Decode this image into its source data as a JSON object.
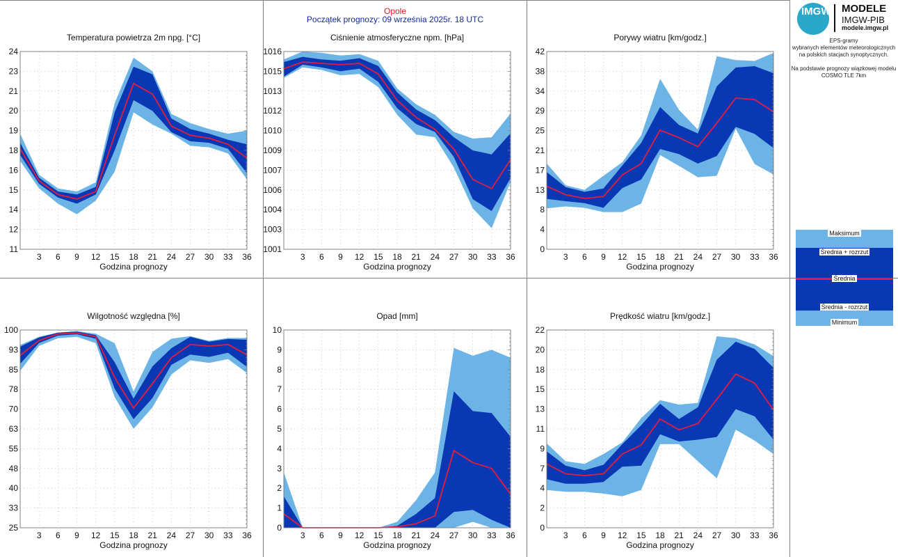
{
  "header": {
    "station": "Opole",
    "start": "Początek prognozy: 09 września 2025r. 18 UTC"
  },
  "logo": {
    "mark": "IMGW",
    "line1": "MODELE",
    "line2": "IMGW-PIB",
    "line3": "modele.imgw.pl"
  },
  "description": {
    "line1": "EPS-gramy",
    "line2": "wybranych elementów meteorologicznych",
    "line3": "na polskich stacjach  synoptycznych.",
    "line4": "Na podstawie prognozy wiązkowej modelu",
    "line5": "COSMO TLE 7km"
  },
  "legend": {
    "max": "Maksimum",
    "upper": "Średnia + rozrzut",
    "mean": "Średnia",
    "lower": "Średnia - rozrzut",
    "min": "Minimum"
  },
  "colors": {
    "outer": "#6cb4e6",
    "inner": "#0a37b4",
    "mean": "#e21e3c",
    "grid": "#b0b0b0",
    "frame": "#808080"
  },
  "chart_data": [
    {
      "type": "area",
      "title": "Temperatura powietrza 2m npg. [°C]",
      "xlabel": "Godzina prognozy",
      "x": [
        0,
        3,
        6,
        9,
        12,
        15,
        18,
        21,
        24,
        27,
        30,
        33,
        36
      ],
      "xticks": [
        "3",
        "6",
        "9",
        "12",
        "15",
        "18",
        "21",
        "24",
        "27",
        "30",
        "33",
        "36"
      ],
      "yticks": [
        "11",
        "12",
        "14",
        "15",
        "16",
        "18",
        "19",
        "20",
        "21",
        "23",
        "24"
      ],
      "ylim": [
        11,
        24
      ],
      "series": [
        {
          "name": "Minimum",
          "values": [
            16.8,
            15.0,
            14.0,
            13.3,
            14.2,
            16.1,
            20.0,
            19.2,
            18.6,
            17.8,
            17.7,
            17.3,
            15.6
          ]
        },
        {
          "name": "Średnia - rozrzut",
          "values": [
            17.2,
            15.3,
            14.4,
            14.0,
            14.6,
            17.5,
            20.8,
            20.1,
            18.7,
            18.1,
            18.0,
            17.6,
            16.0
          ]
        },
        {
          "name": "Średnia",
          "values": [
            17.6,
            15.5,
            14.6,
            14.3,
            14.8,
            18.5,
            21.9,
            21.2,
            19.1,
            18.5,
            18.3,
            17.9,
            17.0
          ]
        },
        {
          "name": "Średnia + rozrzut",
          "values": [
            18.0,
            15.7,
            14.8,
            14.6,
            15.1,
            20.0,
            23.0,
            22.5,
            19.6,
            18.9,
            18.6,
            18.2,
            17.9
          ]
        },
        {
          "name": "Maksimum",
          "values": [
            18.6,
            15.9,
            15.0,
            14.8,
            15.4,
            20.6,
            23.6,
            22.7,
            19.9,
            19.3,
            18.9,
            18.6,
            18.8
          ]
        }
      ]
    },
    {
      "type": "area",
      "title": "Ciśnienie atmosferyczne npm. [hPa]",
      "xlabel": "Godzina prognozy",
      "x": [
        0,
        3,
        6,
        9,
        12,
        15,
        18,
        21,
        24,
        27,
        30,
        33,
        36
      ],
      "xticks": [
        "3",
        "6",
        "9",
        "12",
        "15",
        "18",
        "21",
        "24",
        "27",
        "30",
        "33",
        "36"
      ],
      "yticks": [
        "1001",
        "1003",
        "1004",
        "1006",
        "1007",
        "1009",
        "1010",
        "1012",
        "1013",
        "1015",
        "1016"
      ],
      "ylim": [
        1001,
        1016
      ],
      "series": [
        {
          "name": "Minimum",
          "values": [
            1014.0,
            1014.8,
            1014.6,
            1014.2,
            1014.3,
            1013.3,
            1011.2,
            1009.7,
            1009.5,
            1007.2,
            1004.1,
            1002.6,
            1006.1
          ]
        },
        {
          "name": "Średnia - rozrzut",
          "values": [
            1014.1,
            1015.0,
            1014.8,
            1014.5,
            1014.7,
            1013.7,
            1011.7,
            1010.5,
            1009.9,
            1008.0,
            1004.8,
            1003.9,
            1006.4
          ]
        },
        {
          "name": "Średnia",
          "values": [
            1014.7,
            1015.2,
            1015.1,
            1015.0,
            1015.1,
            1014.3,
            1012.3,
            1011.0,
            1010.1,
            1008.6,
            1006.3,
            1005.6,
            1007.8
          ]
        },
        {
          "name": "Średnia + rozrzut",
          "values": [
            1015.2,
            1015.6,
            1015.4,
            1015.3,
            1015.5,
            1014.9,
            1012.9,
            1011.6,
            1010.8,
            1009.5,
            1008.5,
            1008.2,
            1009.8
          ]
        },
        {
          "name": "Maksimum",
          "values": [
            1015.4,
            1016.0,
            1015.9,
            1015.7,
            1015.8,
            1015.3,
            1013.2,
            1012.0,
            1011.2,
            1009.9,
            1009.4,
            1009.5,
            1011.3
          ]
        }
      ]
    },
    {
      "type": "area",
      "title": "Porywy wiatru [km/godz.]",
      "xlabel": "Godzina prognozy",
      "x": [
        0,
        3,
        6,
        9,
        12,
        15,
        18,
        21,
        24,
        27,
        30,
        33,
        36
      ],
      "xticks": [
        "3",
        "6",
        "9",
        "12",
        "15",
        "18",
        "21",
        "24",
        "27",
        "30",
        "33",
        "36"
      ],
      "yticks": [
        "0",
        "4",
        "8",
        "13",
        "17",
        "21",
        "25",
        "29",
        "34",
        "38",
        "42"
      ],
      "ylim": [
        0,
        42
      ],
      "series": [
        {
          "name": "Minimum",
          "values": [
            8.7,
            9.1,
            8.8,
            7.9,
            7.9,
            9.7,
            20.0,
            17.7,
            15.3,
            15.6,
            25.6,
            18.1,
            15.9
          ]
        },
        {
          "name": "Średnia - rozrzut",
          "values": [
            10.7,
            10.2,
            9.8,
            8.8,
            13.0,
            14.8,
            21.3,
            20.2,
            18.2,
            19.8,
            26.0,
            24.5,
            21.5
          ]
        },
        {
          "name": "Średnia",
          "values": [
            13.4,
            11.6,
            10.8,
            11.2,
            15.8,
            18.2,
            25.3,
            23.7,
            21.8,
            26.8,
            32.1,
            31.8,
            29.2
          ]
        },
        {
          "name": "Średnia + rozrzut",
          "values": [
            16.4,
            13.2,
            12.2,
            12.9,
            17.8,
            22.6,
            30.2,
            26.4,
            24.6,
            34.6,
            38.6,
            38.9,
            37.4
          ]
        },
        {
          "name": "Maksimum",
          "values": [
            18.2,
            13.6,
            12.6,
            15.6,
            18.5,
            24.2,
            36.2,
            29.6,
            25.4,
            41.0,
            40.2,
            40.0,
            41.7
          ]
        }
      ]
    },
    {
      "type": "area",
      "title": "Wilgotność względna [%]",
      "xlabel": "Godzina prognozy",
      "x": [
        0,
        3,
        6,
        9,
        12,
        15,
        18,
        21,
        24,
        27,
        30,
        33,
        36
      ],
      "xticks": [
        "3",
        "6",
        "9",
        "12",
        "15",
        "18",
        "21",
        "24",
        "27",
        "30",
        "33",
        "36"
      ],
      "yticks": [
        "25",
        "33",
        "40",
        "48",
        "55",
        "63",
        "70",
        "78",
        "85",
        "93",
        "100"
      ],
      "ylim": [
        25,
        100
      ],
      "series": [
        {
          "name": "Minimum",
          "values": [
            84.5,
            94.0,
            96.9,
            97.4,
            95.0,
            74.6,
            62.5,
            70.6,
            83.1,
            88.5,
            87.5,
            89.0,
            83.7
          ]
        },
        {
          "name": "Średnia - rozrzut",
          "values": [
            87.2,
            95.1,
            97.9,
            98.4,
            96.7,
            77.8,
            66.2,
            74.2,
            86.8,
            90.7,
            89.8,
            91.4,
            86.0
          ]
        },
        {
          "name": "Średnia",
          "values": [
            90.4,
            96.0,
            98.5,
            98.9,
            97.5,
            82.0,
            70.4,
            79.7,
            89.5,
            94.5,
            93.9,
            94.5,
            90.6
          ]
        },
        {
          "name": "Średnia + rozrzut",
          "values": [
            93.7,
            97.2,
            99.0,
            99.4,
            98.1,
            87.8,
            74.0,
            86.2,
            93.1,
            97.4,
            95.6,
            96.6,
            96.3
          ]
        },
        {
          "name": "Maksimum",
          "values": [
            94.4,
            97.4,
            99.0,
            99.6,
            98.6,
            95.0,
            76.7,
            91.7,
            96.7,
            97.7,
            95.9,
            97.0,
            97.0
          ]
        }
      ]
    },
    {
      "type": "area",
      "title": "Opad [mm]",
      "xlabel": "Godzina prognozy",
      "x": [
        0,
        3,
        6,
        9,
        12,
        15,
        18,
        21,
        24,
        27,
        30,
        33,
        36
      ],
      "xticks": [
        "3",
        "6",
        "9",
        "12",
        "15",
        "18",
        "21",
        "24",
        "27",
        "30",
        "33",
        "36"
      ],
      "yticks": [
        "0",
        "1",
        "2",
        "3",
        "4",
        "5",
        "6",
        "7",
        "8",
        "9",
        "10"
      ],
      "ylim": [
        0,
        10
      ],
      "series": [
        {
          "name": "Minimum",
          "values": [
            0,
            0,
            0,
            0,
            0,
            0,
            0,
            0,
            0,
            0,
            0.3,
            0,
            0
          ]
        },
        {
          "name": "Średnia - rozrzut",
          "values": [
            0,
            0,
            0,
            0,
            0,
            0,
            0,
            0,
            0,
            0.8,
            0.9,
            0.4,
            0
          ]
        },
        {
          "name": "Średnia",
          "values": [
            0.7,
            0,
            0,
            0,
            0,
            0,
            0.05,
            0.2,
            0.6,
            3.9,
            3.3,
            3.0,
            1.7
          ]
        },
        {
          "name": "Średnia + rozrzut",
          "values": [
            1.6,
            0,
            0,
            0,
            0,
            0,
            0.1,
            0.7,
            1.5,
            6.9,
            5.9,
            5.8,
            4.6
          ]
        },
        {
          "name": "Maksimum",
          "values": [
            2.8,
            0,
            0,
            0,
            0,
            0,
            0.3,
            1.4,
            2.8,
            9.1,
            8.7,
            9.0,
            8.6
          ]
        }
      ]
    },
    {
      "type": "area",
      "title": "Prędkość wiatru [km/godz.]",
      "xlabel": "Godzina prognozy",
      "x": [
        0,
        3,
        6,
        9,
        12,
        15,
        18,
        21,
        24,
        27,
        30,
        33,
        36
      ],
      "xticks": [
        "3",
        "6",
        "9",
        "12",
        "15",
        "18",
        "21",
        "24",
        "27",
        "30",
        "33",
        "36"
      ],
      "yticks": [
        "0",
        "2",
        "4",
        "7",
        "9",
        "11",
        "13",
        "15",
        "18",
        "20",
        "22"
      ],
      "ylim": [
        0,
        22
      ],
      "series": [
        {
          "name": "Minimum",
          "values": [
            4.2,
            4.0,
            4.0,
            3.8,
            3.5,
            4.2,
            9.3,
            9.3,
            7.4,
            5.5,
            10.9,
            9.7,
            8.2
          ]
        },
        {
          "name": "Średnia - rozrzut",
          "values": [
            5.4,
            4.9,
            4.9,
            5.1,
            6.8,
            6.9,
            10.4,
            9.6,
            9.8,
            10.1,
            13.2,
            12.4,
            9.8
          ]
        },
        {
          "name": "Średnia",
          "values": [
            7.1,
            6.0,
            5.8,
            6.0,
            8.2,
            9.2,
            12.1,
            10.9,
            11.6,
            14.3,
            17.1,
            16.1,
            13.1
          ]
        },
        {
          "name": "Średnia + rozrzut",
          "values": [
            8.5,
            6.9,
            6.4,
            7.0,
            9.3,
            11.4,
            13.8,
            12.1,
            13.4,
            18.7,
            20.7,
            19.9,
            17.8
          ]
        },
        {
          "name": "Maksimum",
          "values": [
            9.4,
            7.4,
            7.1,
            8.2,
            9.5,
            12.2,
            14.2,
            13.7,
            13.9,
            21.3,
            21.1,
            20.4,
            19.1
          ]
        }
      ]
    }
  ]
}
